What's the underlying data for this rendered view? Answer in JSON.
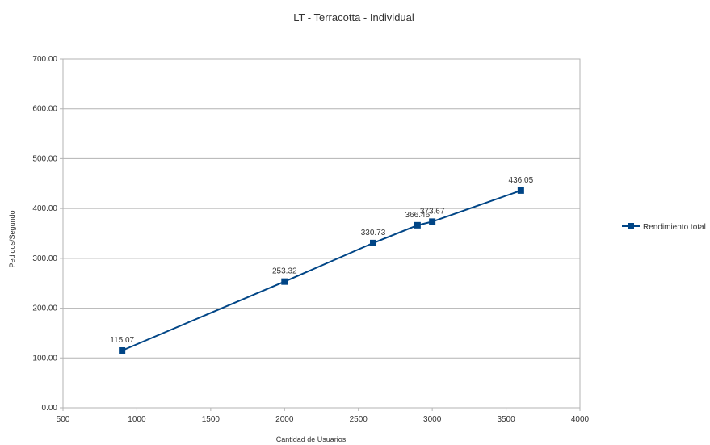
{
  "chart_data": {
    "type": "line",
    "title": "LT - Terracotta - Individual",
    "xlabel": "Cantidad de Usuarios",
    "ylabel": "Pedidos/Segundo",
    "xlim": [
      500,
      4000
    ],
    "ylim": [
      0,
      700
    ],
    "x_ticks": [
      500,
      1000,
      1500,
      2000,
      2500,
      3000,
      3500,
      4000
    ],
    "y_ticks": [
      "0.00",
      "100.00",
      "200.00",
      "300.00",
      "400.00",
      "500.00",
      "600.00",
      "700.00"
    ],
    "y_tick_values": [
      0,
      100,
      200,
      300,
      400,
      500,
      600,
      700
    ],
    "grid": true,
    "legend_position": "right",
    "series": [
      {
        "name": "Rendimiento total",
        "color": "#004586",
        "x": [
          900,
          2000,
          2600,
          2900,
          3000,
          3600
        ],
        "values": [
          115.07,
          253.32,
          330.73,
          366.46,
          373.67,
          436.05
        ],
        "labels": [
          "115.07",
          "253.32",
          "330.73",
          "366.46",
          "373.67",
          "436.05"
        ]
      }
    ]
  }
}
